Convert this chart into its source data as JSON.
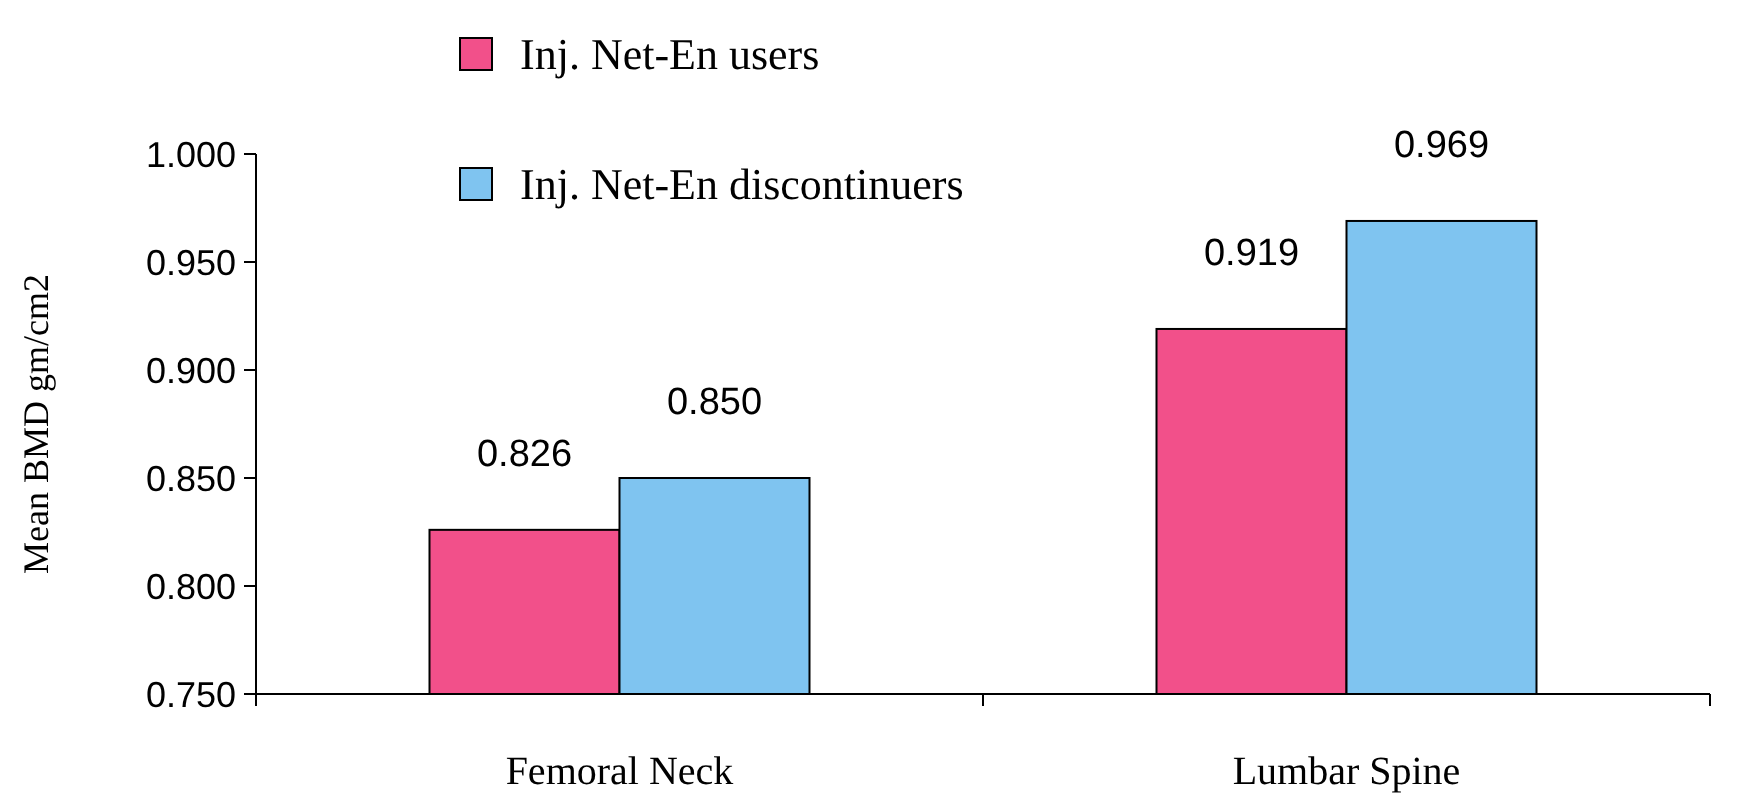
{
  "chart_data": {
    "type": "bar",
    "ylabel": "Mean BMD gm/cm2",
    "categories": [
      "Femoral Neck",
      "Lumbar Spine"
    ],
    "series": [
      {
        "name": "Inj. Net-En users",
        "color": "#f2508a",
        "values": [
          0.826,
          0.919
        ],
        "value_labels": [
          "0.826",
          "0.919"
        ]
      },
      {
        "name": "Inj. Net-En discontinuers",
        "color": "#7fc4f0",
        "values": [
          0.85,
          0.969
        ],
        "value_labels": [
          "0.850",
          "0.969"
        ]
      }
    ],
    "ylim": [
      0.75,
      1.0
    ],
    "yticks": [
      {
        "value": 0.75,
        "label": "0.750"
      },
      {
        "value": 0.8,
        "label": "0.800"
      },
      {
        "value": 0.85,
        "label": "0.850"
      },
      {
        "value": 0.9,
        "label": "0.900"
      },
      {
        "value": 0.95,
        "label": "0.950"
      },
      {
        "value": 1.0,
        "label": "1.000"
      }
    ],
    "legend": "top",
    "grid": false
  }
}
